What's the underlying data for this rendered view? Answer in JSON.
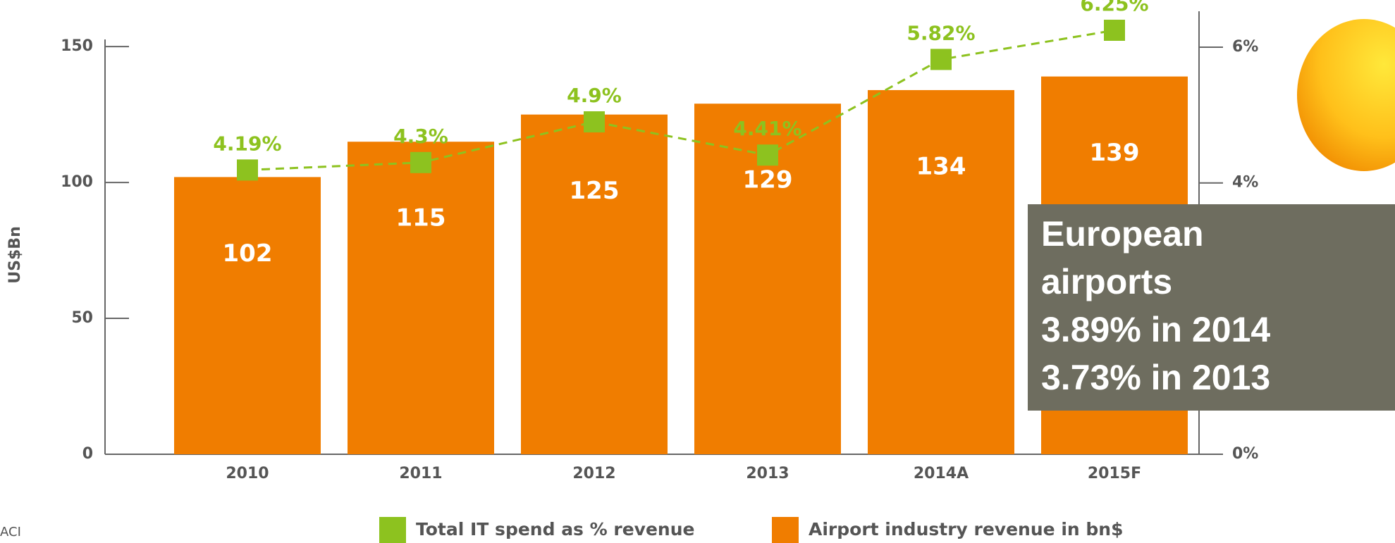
{
  "chart_data": {
    "type": "bar",
    "categories": [
      "2010",
      "2011",
      "2012",
      "2013",
      "2014A",
      "2015F"
    ],
    "ylabel": "US$Bn",
    "ylim": [
      0,
      163
    ],
    "yticks": [
      0,
      50,
      100,
      150
    ],
    "y2lim": [
      0,
      6.53
    ],
    "y2ticks": [
      {
        "value": 0,
        "label": "0%"
      },
      {
        "value": 4,
        "label": "4%"
      },
      {
        "value": 6,
        "label": "6%"
      }
    ],
    "series": [
      {
        "name": "Airport industry revenue in bn$",
        "color": "#f07d00",
        "type": "bar",
        "values": [
          102,
          115,
          125,
          129,
          134,
          139
        ]
      },
      {
        "name": "Total IT spend as % revenue",
        "color": "#8dc21f",
        "type": "line",
        "axis": "y2",
        "values": [
          4.19,
          4.3,
          4.9,
          4.41,
          5.82,
          6.25
        ],
        "value_labels": [
          "4.19%",
          "4.3%",
          "4.9%",
          "4.41%",
          "5.82%",
          "6.25%"
        ]
      }
    ],
    "annotation": [
      "European",
      "airports",
      "3.89% in 2014",
      "3.73% in 2013"
    ],
    "source": "ACI"
  }
}
